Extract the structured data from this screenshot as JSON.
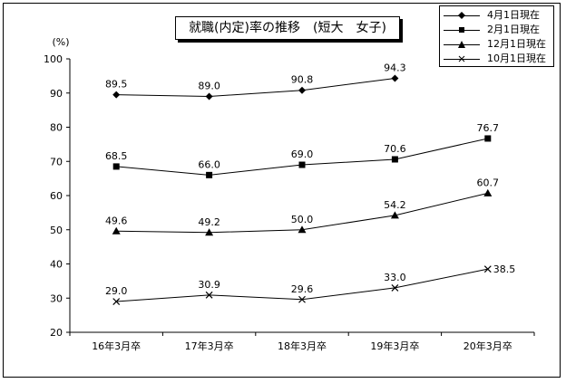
{
  "chart_data": {
    "type": "line",
    "title": "就職(内定)率の推移　(短大　女子)",
    "ylabel": "(%)",
    "xlabel": "",
    "ylim": [
      20,
      100
    ],
    "yticks": [
      20,
      30,
      40,
      50,
      60,
      70,
      80,
      90,
      100
    ],
    "categories": [
      "16年3月卒",
      "17年3月卒",
      "18年3月卒",
      "19年3月卒",
      "20年3月卒"
    ],
    "legend_position": "top-right",
    "grid": false,
    "series": [
      {
        "name": "4月1日現在",
        "marker": "diamond",
        "values": [
          89.5,
          89.0,
          90.8,
          94.3,
          null
        ],
        "labels": [
          "89.5",
          "89.0",
          "90.8",
          "94.3",
          null
        ]
      },
      {
        "name": "2月1日現在",
        "marker": "square",
        "values": [
          68.5,
          66.0,
          69.0,
          70.6,
          76.7
        ],
        "labels": [
          "68.5",
          "66.0",
          "69.0",
          "70.6",
          "76.7"
        ]
      },
      {
        "name": "12月1日現在",
        "marker": "triangle",
        "values": [
          49.6,
          49.2,
          50.0,
          54.2,
          60.7
        ],
        "labels": [
          "49.6",
          "49.2",
          "50.0",
          "54.2",
          "60.7"
        ]
      },
      {
        "name": "10月1日現在",
        "marker": "x",
        "values": [
          29.0,
          30.9,
          29.6,
          33.0,
          38.5
        ],
        "labels": [
          "29.0",
          "30.9",
          "29.6",
          "33.0",
          "38.5"
        ]
      }
    ]
  }
}
